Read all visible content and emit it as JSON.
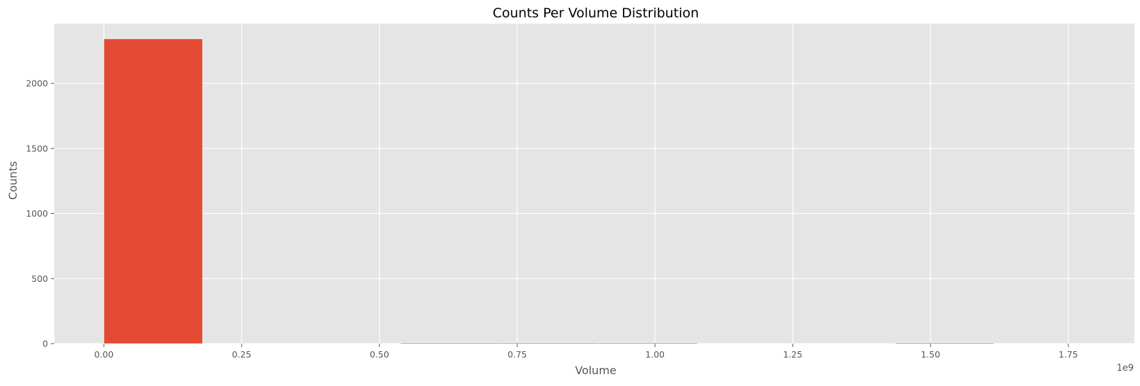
{
  "chart_data": {
    "type": "bar",
    "title": "Counts Per Volume Distribution",
    "xlabel": "Volume",
    "ylabel": "Counts",
    "x_offset_label": "1e9",
    "xlim": [
      -0.09,
      1.87
    ],
    "ylim": [
      0,
      2459
    ],
    "x_ticks": [
      0.0,
      0.25,
      0.5,
      0.75,
      1.0,
      1.25,
      1.5,
      1.75
    ],
    "x_tick_labels": [
      "0.00",
      "0.25",
      "0.50",
      "0.75",
      "1.00",
      "1.25",
      "1.50",
      "1.75"
    ],
    "y_ticks": [
      0,
      500,
      1000,
      1500,
      2000
    ],
    "y_tick_labels": [
      "0",
      "500",
      "1000",
      "1500",
      "2000"
    ],
    "bins": [
      {
        "start": 0.0,
        "end": 0.179,
        "count": 2342
      },
      {
        "start": 0.179,
        "end": 0.359,
        "count": 0
      },
      {
        "start": 0.359,
        "end": 0.538,
        "count": 0
      },
      {
        "start": 0.538,
        "end": 0.718,
        "count": 2
      },
      {
        "start": 0.718,
        "end": 0.897,
        "count": 2
      },
      {
        "start": 0.897,
        "end": 1.077,
        "count": 2
      },
      {
        "start": 1.077,
        "end": 1.256,
        "count": 0
      },
      {
        "start": 1.256,
        "end": 1.436,
        "count": 0
      },
      {
        "start": 1.436,
        "end": 1.615,
        "count": 1
      }
    ],
    "grid": true,
    "colors": {
      "bar": "#E24A33",
      "background": "#E5E5E5",
      "grid": "#FFFFFF",
      "text": "#555555",
      "title": "#000000"
    }
  }
}
